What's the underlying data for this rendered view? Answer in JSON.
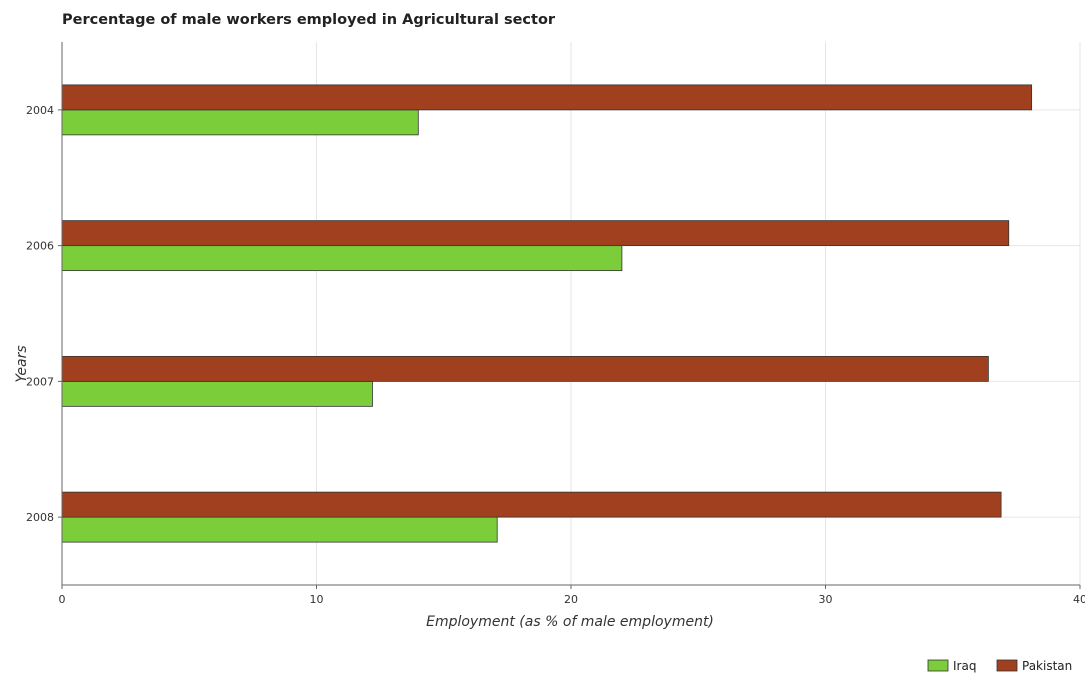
{
  "chart_data": {
    "type": "bar",
    "orientation": "horizontal",
    "title": "Percentage of male workers employed in Agricultural sector",
    "xlabel": "Employment (as % of male employment)",
    "ylabel": "Years",
    "categories": [
      "2004",
      "2006",
      "2007",
      "2008"
    ],
    "series": [
      {
        "name": "Iraq",
        "color": "#7ccd3a",
        "values": [
          14.0,
          22.0,
          12.2,
          17.1
        ]
      },
      {
        "name": "Pakistan",
        "color": "#a0401f",
        "values": [
          38.1,
          37.2,
          36.4,
          36.9
        ]
      }
    ],
    "xlim": [
      0,
      40
    ],
    "xticks": [
      0,
      10,
      20,
      30,
      40
    ],
    "grid": true,
    "legend_position": "bottom-right"
  }
}
